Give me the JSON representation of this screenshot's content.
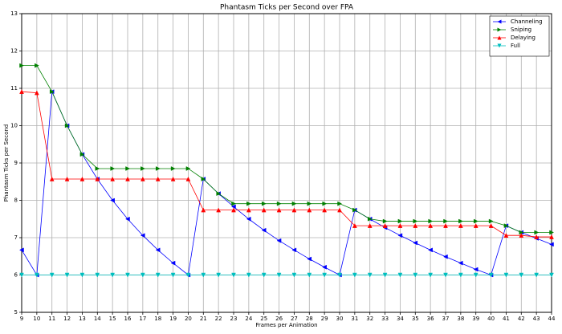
{
  "chart_data": {
    "type": "line",
    "title": "Phantasm Ticks per Second over FPA",
    "xlabel": "Frames per Animation",
    "ylabel": "Phantasm Ticks per Second",
    "x": [
      9,
      10,
      11,
      12,
      13,
      14,
      15,
      16,
      17,
      18,
      19,
      20,
      21,
      22,
      23,
      24,
      25,
      26,
      27,
      28,
      29,
      30,
      31,
      32,
      33,
      34,
      35,
      36,
      37,
      38,
      39,
      40,
      41,
      42,
      43,
      44
    ],
    "series": [
      {
        "name": "Channeling",
        "color": "#0000ff",
        "marker": "left",
        "values": [
          6.67,
          6.0,
          10.91,
          10.0,
          9.23,
          8.57,
          8.0,
          7.5,
          7.06,
          6.67,
          6.32,
          6.0,
          8.57,
          8.18,
          7.83,
          7.5,
          7.2,
          6.92,
          6.67,
          6.43,
          6.21,
          6.0,
          7.74,
          7.5,
          7.27,
          7.06,
          6.86,
          6.67,
          6.49,
          6.32,
          6.15,
          6.0,
          7.32,
          7.14,
          6.98,
          6.82
        ]
      },
      {
        "name": "Sniping",
        "color": "#008000",
        "marker": "right",
        "values": [
          11.61,
          11.61,
          10.91,
          10.0,
          9.23,
          8.85,
          8.85,
          8.85,
          8.85,
          8.85,
          8.85,
          8.85,
          8.57,
          8.18,
          7.91,
          7.91,
          7.91,
          7.91,
          7.91,
          7.91,
          7.91,
          7.91,
          7.74,
          7.5,
          7.44,
          7.44,
          7.44,
          7.44,
          7.44,
          7.44,
          7.44,
          7.44,
          7.32,
          7.14,
          7.14,
          7.14
        ]
      },
      {
        "name": "Delaying",
        "color": "#ff0000",
        "marker": "up",
        "values": [
          10.91,
          10.88,
          8.57,
          8.57,
          8.57,
          8.57,
          8.57,
          8.57,
          8.57,
          8.57,
          8.57,
          8.57,
          7.74,
          7.74,
          7.74,
          7.74,
          7.74,
          7.74,
          7.74,
          7.74,
          7.74,
          7.74,
          7.32,
          7.32,
          7.32,
          7.32,
          7.32,
          7.32,
          7.32,
          7.32,
          7.32,
          7.32,
          7.06,
          7.06,
          7.02,
          7.02
        ]
      },
      {
        "name": "Full",
        "color": "#00bfbf",
        "marker": "down",
        "values": [
          6,
          6,
          6,
          6,
          6,
          6,
          6,
          6,
          6,
          6,
          6,
          6,
          6,
          6,
          6,
          6,
          6,
          6,
          6,
          6,
          6,
          6,
          6,
          6,
          6,
          6,
          6,
          6,
          6,
          6,
          6,
          6,
          6,
          6,
          6,
          6
        ]
      }
    ],
    "xlim": [
      9,
      44
    ],
    "xticks": [
      9,
      10,
      11,
      12,
      13,
      14,
      15,
      16,
      17,
      18,
      19,
      20,
      21,
      22,
      23,
      24,
      25,
      26,
      27,
      28,
      29,
      30,
      31,
      32,
      33,
      34,
      35,
      36,
      37,
      38,
      39,
      40,
      41,
      42,
      43,
      44
    ],
    "ylim": [
      5,
      13
    ],
    "yticks": [
      5,
      6,
      7,
      8,
      9,
      10,
      11,
      12,
      13
    ],
    "grid": true,
    "legend": "upper right"
  }
}
